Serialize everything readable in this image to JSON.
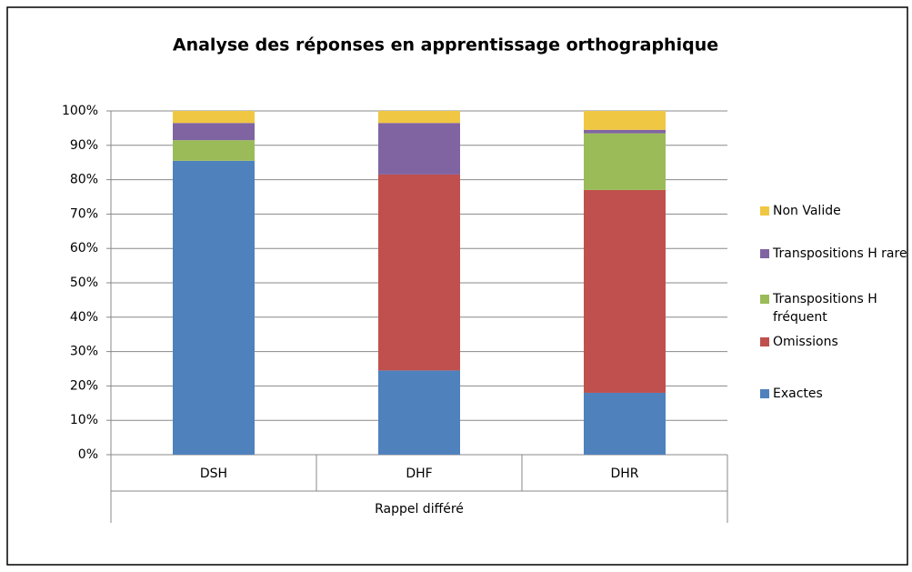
{
  "chart_data": {
    "type": "stacked_bar",
    "title": "Analyse des réponses en apprentissage orthographique",
    "categories": [
      "DSH",
      "DHF",
      "DHR"
    ],
    "group_label": "Rappel différé",
    "series": [
      {
        "name": "Exactes",
        "color": "#4f81bd",
        "values": [
          85.5,
          24.5,
          18
        ]
      },
      {
        "name": "Omissions",
        "color": "#c0504d",
        "values": [
          0,
          57,
          59
        ]
      },
      {
        "name": "Transpositions H fréquent",
        "color": "#9bbb59",
        "values": [
          6,
          0,
          16.5
        ]
      },
      {
        "name": "Transpositions H rare",
        "color": "#8064a2",
        "values": [
          5,
          15,
          1
        ]
      },
      {
        "name": "Non Valide",
        "color": "#f0c742",
        "values": [
          3.5,
          3.5,
          5.5
        ]
      }
    ],
    "ylim": [
      0,
      100
    ],
    "yticks": [
      {
        "value": 0,
        "label": "0%"
      },
      {
        "value": 10,
        "label": "10%"
      },
      {
        "value": 20,
        "label": "20%"
      },
      {
        "value": 30,
        "label": "30%"
      },
      {
        "value": 40,
        "label": "40%"
      },
      {
        "value": 50,
        "label": "50%"
      },
      {
        "value": 60,
        "label": "60%"
      },
      {
        "value": 70,
        "label": "70%"
      },
      {
        "value": 80,
        "label": "80%"
      },
      {
        "value": 90,
        "label": "90%"
      },
      {
        "value": 100,
        "label": "100%"
      }
    ],
    "grid": true,
    "legend": "right"
  }
}
